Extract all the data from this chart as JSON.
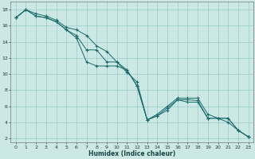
{
  "xlabel": "Humidex (Indice chaleur)",
  "background_color": "#cce8e5",
  "grid_color": "#99cccc",
  "line_color": "#1a6b6b",
  "xlim": [
    -0.5,
    23.5
  ],
  "ylim": [
    1.5,
    19
  ],
  "xticks": [
    0,
    1,
    2,
    3,
    4,
    5,
    6,
    7,
    8,
    9,
    10,
    11,
    12,
    13,
    14,
    15,
    16,
    17,
    18,
    19,
    20,
    21,
    22,
    23
  ],
  "yticks": [
    2,
    4,
    6,
    8,
    10,
    12,
    14,
    16,
    18
  ],
  "series": [
    [
      17.0,
      18.0,
      17.5,
      17.2,
      16.7,
      15.8,
      15.5,
      14.8,
      13.5,
      12.8,
      11.5,
      10.2,
      9.0,
      4.3,
      5.0,
      6.0,
      7.0,
      7.0,
      7.0,
      5.0,
      4.5,
      4.5,
      3.0,
      2.2
    ],
    [
      17.0,
      18.0,
      17.2,
      17.0,
      16.5,
      15.5,
      14.8,
      13.0,
      13.0,
      11.5,
      11.5,
      10.5,
      8.5,
      4.3,
      4.8,
      5.8,
      6.8,
      6.8,
      6.7,
      4.5,
      4.5,
      4.5,
      3.0,
      2.2
    ],
    [
      17.0,
      18.0,
      17.2,
      17.0,
      16.5,
      15.5,
      14.5,
      11.5,
      11.0,
      11.0,
      11.0,
      10.5,
      8.5,
      4.3,
      4.8,
      5.5,
      6.8,
      6.5,
      6.5,
      4.5,
      4.5,
      4.0,
      3.0,
      2.2
    ]
  ]
}
